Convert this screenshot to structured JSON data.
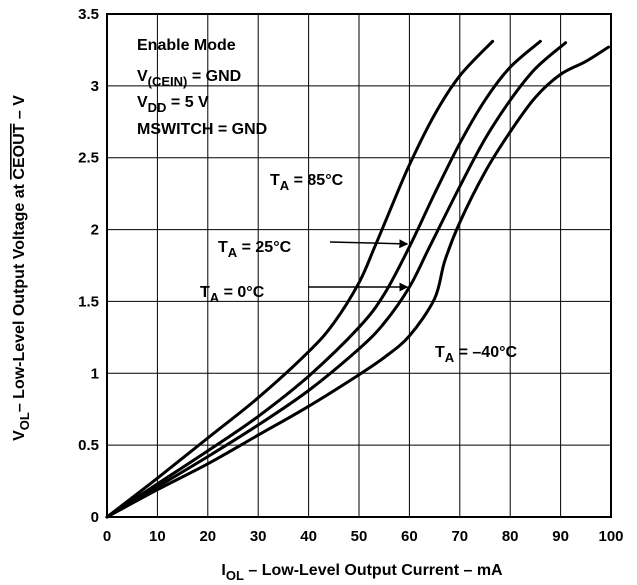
{
  "chart_data": {
    "type": "line",
    "xlim": [
      0,
      100
    ],
    "ylim": [
      0,
      3.5
    ],
    "x_ticks": [
      0,
      10,
      20,
      30,
      40,
      50,
      60,
      70,
      80,
      90,
      100
    ],
    "y_ticks": [
      0,
      0.5,
      1,
      1.5,
      2,
      2.5,
      3,
      3.5
    ],
    "x_tick_labels": [
      "0",
      "10",
      "20",
      "30",
      "40",
      "50",
      "60",
      "70",
      "80",
      "90",
      "100"
    ],
    "y_tick_labels": [
      "0",
      "0.5",
      "1",
      "1.5",
      "2",
      "2.5",
      "3",
      "3.5"
    ],
    "grid": true,
    "xlabel": {
      "base": "I",
      "sub": "OL",
      "rest": " – Low-Level Output Current – mA"
    },
    "ylabel": {
      "base": "V",
      "sub": "OL",
      "rest": "– Low-Level Output Voltage at ",
      "over": "CEOUT",
      "tail": " – V"
    },
    "conditions": [
      {
        "text": "Enable Mode"
      },
      {
        "base": "V",
        "sub": "(CEIN)",
        "rest": " = GND"
      },
      {
        "base": "V",
        "sub": "DD",
        "rest": " = 5 V"
      },
      {
        "text": "MSWITCH = GND"
      }
    ],
    "series": [
      {
        "name": "T_A = 85°C",
        "label": {
          "base": "T",
          "sub": "A",
          "rest": " = 85°C"
        },
        "x": [
          0,
          10,
          20,
          30,
          40,
          45,
          50,
          53,
          56,
          60,
          65,
          70,
          76.5
        ],
        "y": [
          0,
          0.27,
          0.55,
          0.83,
          1.15,
          1.35,
          1.63,
          1.87,
          2.12,
          2.45,
          2.8,
          3.07,
          3.31
        ]
      },
      {
        "name": "T_A = 25°C",
        "label": {
          "base": "T",
          "sub": "A",
          "rest": " = 25°C"
        },
        "x": [
          0,
          10,
          20,
          30,
          40,
          50,
          55,
          60,
          65,
          70,
          75,
          80,
          86
        ],
        "y": [
          0,
          0.23,
          0.46,
          0.7,
          0.98,
          1.32,
          1.55,
          1.88,
          2.25,
          2.6,
          2.9,
          3.13,
          3.31
        ]
      },
      {
        "name": "T_A = 0°C",
        "label": {
          "base": "T",
          "sub": "A",
          "rest": " = 0°C"
        },
        "x": [
          0,
          10,
          20,
          30,
          40,
          50,
          55,
          60,
          64,
          70,
          75,
          80,
          85,
          91
        ],
        "y": [
          0,
          0.21,
          0.42,
          0.64,
          0.88,
          1.17,
          1.35,
          1.6,
          1.88,
          2.3,
          2.63,
          2.9,
          3.12,
          3.3
        ]
      },
      {
        "name": "T_A = –40°C",
        "label": {
          "base": "T",
          "sub": "A",
          "rest": " = –40°C"
        },
        "x": [
          0,
          10,
          20,
          30,
          40,
          50,
          55,
          60,
          65,
          67,
          70,
          75,
          80,
          85,
          90,
          95,
          99.5
        ],
        "y": [
          0,
          0.19,
          0.37,
          0.57,
          0.77,
          0.99,
          1.11,
          1.26,
          1.52,
          1.78,
          2.05,
          2.4,
          2.68,
          2.92,
          3.08,
          3.17,
          3.27
        ]
      }
    ],
    "annotations": [
      {
        "series": "T_A = 25°C",
        "arrow_to": [
          60,
          1.9
        ]
      },
      {
        "series": "T_A = 0°C",
        "arrow_to": [
          60,
          1.6
        ]
      }
    ]
  }
}
